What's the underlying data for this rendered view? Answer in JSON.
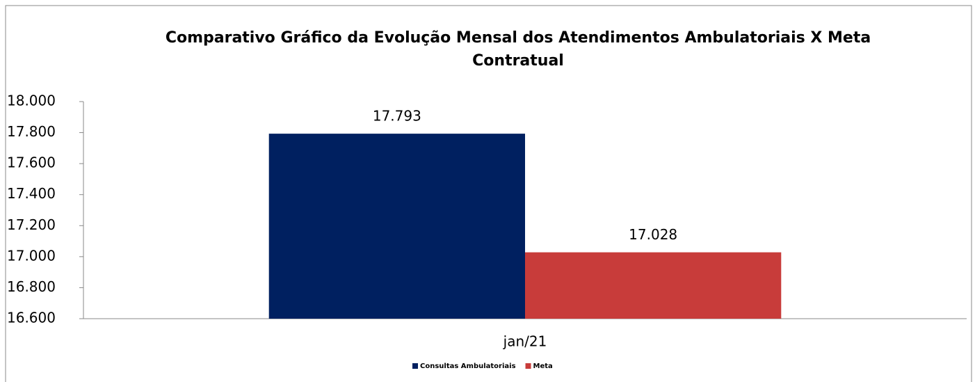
{
  "chart_data": {
    "type": "bar",
    "title": "Comparativo Gráfico da Evolução Mensal dos Atendimentos Ambulatoriais X Meta Contratual",
    "categories": [
      "jan/21"
    ],
    "series": [
      {
        "name": "Consultas Ambulatoriais",
        "color": "#002060",
        "values": [
          17793
        ],
        "value_labels": [
          "17.793"
        ]
      },
      {
        "name": "Meta",
        "color": "#c83c3a",
        "values": [
          17028
        ],
        "value_labels": [
          "17.028"
        ]
      }
    ],
    "ylim": [
      16600,
      18000
    ],
    "yticks": [
      {
        "value": 16600,
        "label": "16.600"
      },
      {
        "value": 16800,
        "label": "16.800"
      },
      {
        "value": 17000,
        "label": "17.000"
      },
      {
        "value": 17200,
        "label": "17.200"
      },
      {
        "value": 17400,
        "label": "17.400"
      },
      {
        "value": 17600,
        "label": "17.600"
      },
      {
        "value": 17800,
        "label": "17.800"
      },
      {
        "value": 18000,
        "label": "18.000"
      }
    ],
    "grid": false,
    "legend": "bottom"
  }
}
